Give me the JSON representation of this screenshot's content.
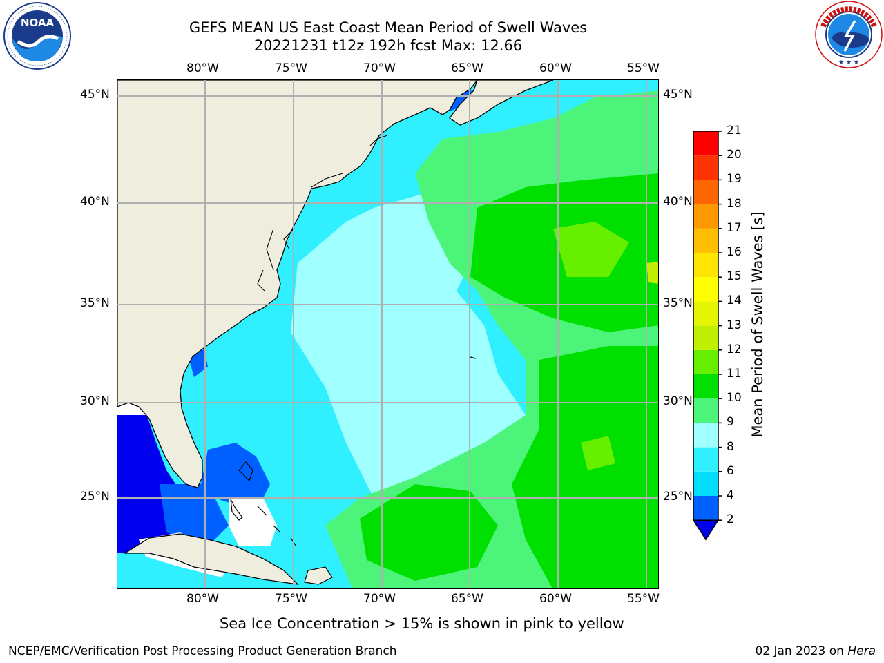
{
  "title": {
    "line1": "GEFS MEAN US East Coast Mean Period of Swell Waves",
    "line2": "20221231 t12z 192h fcst   Max: 12.66"
  },
  "logos": {
    "left": {
      "text": "NOAA",
      "ring_text": "NATIONAL OCEANIC AND ATMOSPHERIC ADMINISTRATION · U.S. DEPARTMENT OF COMMERCE"
    },
    "right": {
      "ring_text": "NATIONAL WEATHER SERVICE"
    }
  },
  "map": {
    "lon_ticks": [
      "80°W",
      "75°W",
      "70°W",
      "65°W",
      "60°W",
      "55°W"
    ],
    "lat_ticks": [
      "45°N",
      "40°N",
      "35°N",
      "30°N",
      "25°N"
    ],
    "lon_range": [
      -85,
      -54
    ],
    "lat_range": [
      20.5,
      46
    ],
    "colors": {
      "land": "#efedde",
      "grid": "#b0b0b0",
      "coast": "#000000",
      "no_data": "#ffffff"
    }
  },
  "colorbar": {
    "label": "Mean Period of Swell Waves [s]",
    "levels": [
      "2",
      "4",
      "6",
      "8",
      "9",
      "10",
      "11",
      "12",
      "13",
      "14",
      "15",
      "16",
      "17",
      "18",
      "19",
      "20",
      "21"
    ],
    "colors": [
      "#0060ff",
      "#00ddff",
      "#30f0ff",
      "#a0ffff",
      "#4cf57a",
      "#00e000",
      "#66f000",
      "#c0f000",
      "#e6f500",
      "#ffff00",
      "#ffe600",
      "#ffbf00",
      "#ff9900",
      "#ff6600",
      "#ff3300",
      "#ff0000"
    ],
    "under_color": "#0000ee"
  },
  "footer": {
    "note": "Sea Ice Concentration > 15% is shown in pink to yellow",
    "left": "NCEP/EMC/Verification Post Processing Product Generation Branch",
    "right_date": "02 Jan 2023 on ",
    "right_host": "Hera"
  }
}
